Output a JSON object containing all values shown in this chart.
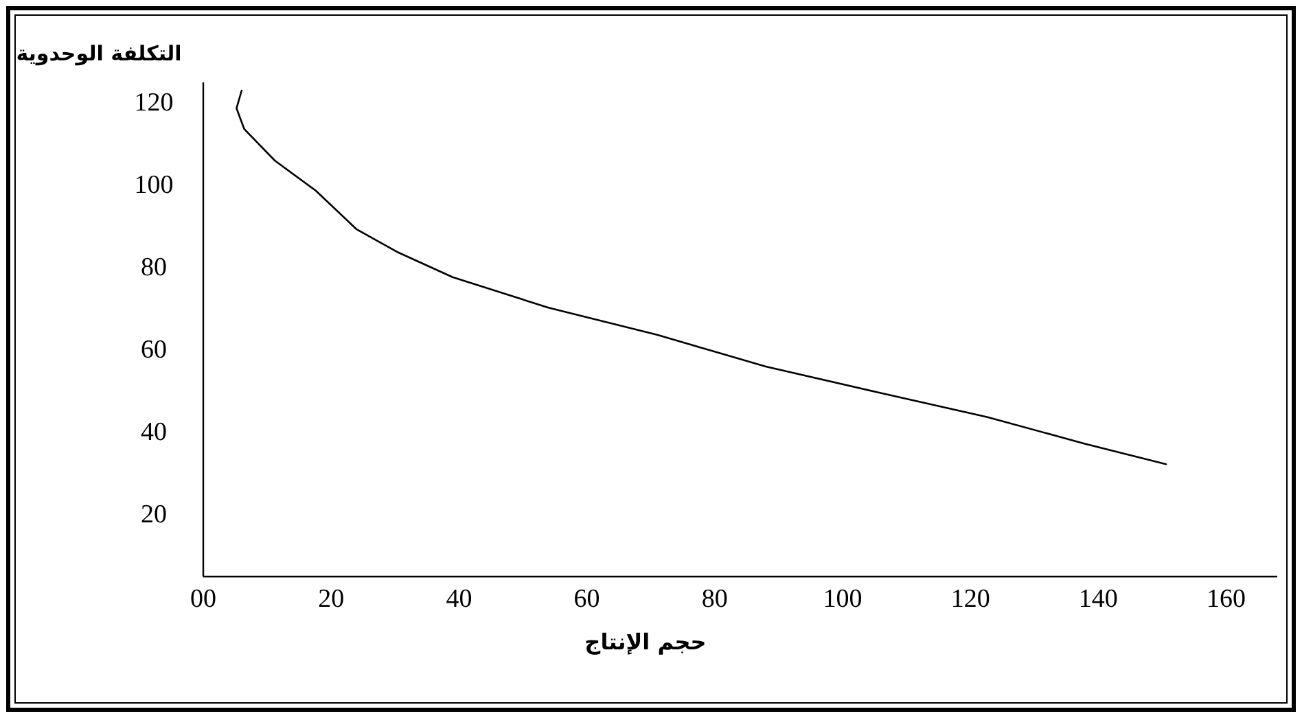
{
  "chart_data": {
    "type": "line",
    "ylabel": "التكلفة الوحدوية",
    "xlabel": "حجم الإنتاج",
    "xlim": [
      0,
      168
    ],
    "ylim": [
      5,
      125
    ],
    "xticks": [
      {
        "value": 0,
        "label": "00"
      },
      20,
      40,
      60,
      80,
      100,
      120,
      140,
      160
    ],
    "yticks": [
      20,
      40,
      60,
      80,
      100,
      120
    ],
    "grid": false,
    "marker": "none",
    "line_style": "solid",
    "series": [
      {
        "color": "#000000",
        "x": [
          6,
          5.2,
          6.4,
          11.2,
          17.6,
          24,
          30.5,
          39,
          54,
          71,
          88,
          105.6,
          122.7,
          137.8,
          150.6
        ],
        "values": [
          123,
          118.7,
          113.7,
          106,
          98.7,
          89.3,
          83.7,
          77.7,
          70.3,
          63.7,
          56,
          49.7,
          43.7,
          37.3,
          32.3
        ]
      }
    ]
  }
}
